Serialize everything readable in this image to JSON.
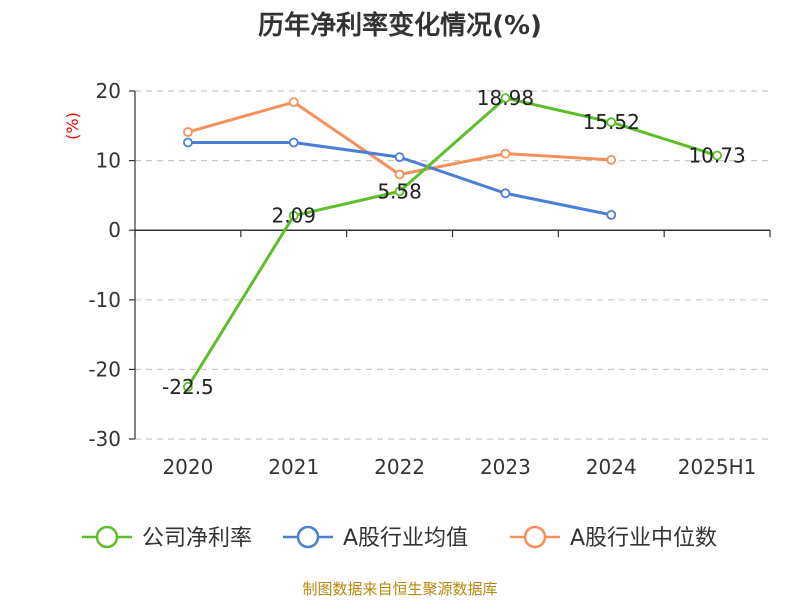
{
  "chart_data": {
    "type": "line",
    "title": "历年净利率变化情况(%)",
    "ylabel": "(%)",
    "categories": [
      "2020",
      "2021",
      "2022",
      "2023",
      "2024",
      "2025H1"
    ],
    "ylim": [
      -30,
      20
    ],
    "yticks": [
      20,
      10,
      0,
      -10,
      -20,
      -30
    ],
    "ytick_labels": [
      "20",
      "10",
      "0",
      "-10",
      "-20",
      "-30"
    ],
    "grid": true,
    "legend_position": "bottom",
    "series": [
      {
        "name": "公司净利率",
        "color": "#5cbf2a",
        "values": [
          -22.5,
          2.09,
          5.58,
          18.98,
          15.52,
          10.73
        ],
        "labels": [
          "-22.5",
          "2.09",
          "5.58",
          "18.98",
          "15.52",
          "10.73"
        ]
      },
      {
        "name": "A股行业均值",
        "color": "#4a7fd6",
        "values": [
          12.6,
          12.6,
          10.5,
          5.3,
          2.2,
          null
        ]
      },
      {
        "name": "A股行业中位数",
        "color": "#f5905a",
        "values": [
          14.1,
          18.4,
          8.0,
          11.0,
          10.1,
          null
        ]
      }
    ],
    "source": "制图数据来自恒生聚源数据库"
  }
}
